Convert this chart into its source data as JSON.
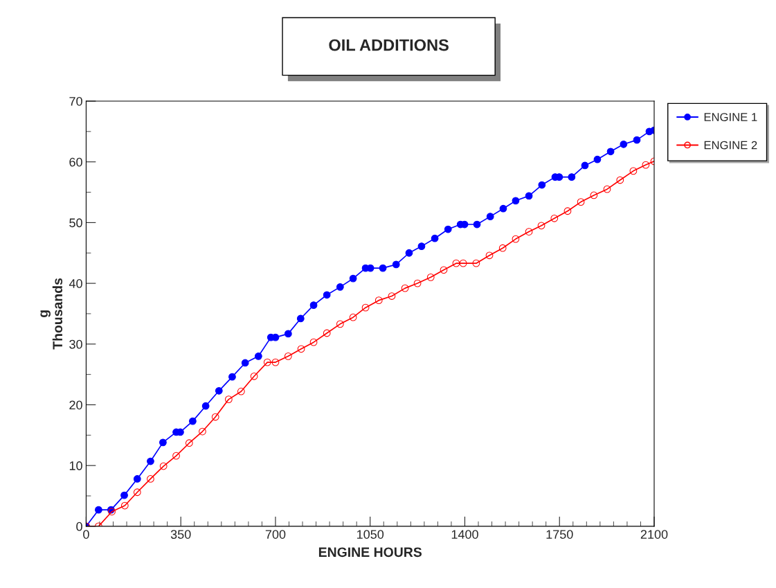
{
  "chart_data": {
    "type": "line",
    "title": "OIL ADDITIONS",
    "xlabel": "ENGINE HOURS",
    "ylabel": "g\nThousands",
    "xlim": [
      0,
      2100
    ],
    "xticks": [
      0,
      350,
      700,
      1050,
      1400,
      1750,
      2100
    ],
    "ylim": [
      0,
      70
    ],
    "yticks": [
      0,
      10,
      20,
      30,
      40,
      50,
      60,
      70
    ],
    "grid": false,
    "legend": "right",
    "marker": "circle",
    "line_style": "solid",
    "series": [
      {
        "name": "ENGINE 1",
        "color": "#0000ff",
        "x": [
          0,
          46,
          92,
          141,
          189,
          238,
          284,
          333,
          348,
          394,
          442,
          491,
          540,
          588,
          637,
          683,
          700,
          747,
          793,
          841,
          890,
          939,
          987,
          1033,
          1051,
          1097,
          1146,
          1194,
          1240,
          1289,
          1338,
          1384,
          1399,
          1445,
          1494,
          1542,
          1588,
          1637,
          1685,
          1734,
          1749,
          1795,
          1844,
          1890,
          1939,
          1987,
          2036,
          2082,
          2100
        ],
        "values": [
          0,
          2.7,
          2.7,
          5.1,
          7.8,
          10.7,
          13.8,
          15.5,
          15.5,
          17.3,
          19.8,
          22.3,
          24.6,
          26.9,
          28.0,
          31.1,
          31.1,
          31.7,
          34.2,
          36.4,
          38.1,
          39.4,
          40.8,
          42.5,
          42.5,
          42.5,
          43.1,
          45.0,
          46.1,
          47.4,
          48.9,
          49.7,
          49.7,
          49.7,
          51.0,
          52.3,
          53.6,
          54.4,
          56.2,
          57.5,
          57.5,
          57.5,
          59.4,
          60.4,
          61.7,
          62.9,
          63.6,
          65.0,
          65.2
        ]
      },
      {
        "name": "ENGINE 2",
        "color": "#ff0000",
        "x": [
          0,
          46,
          95,
          143,
          189,
          238,
          286,
          333,
          381,
          430,
          478,
          527,
          573,
          621,
          670,
          700,
          747,
          795,
          841,
          890,
          939,
          987,
          1033,
          1082,
          1130,
          1179,
          1225,
          1274,
          1322,
          1368,
          1394,
          1442,
          1491,
          1540,
          1588,
          1637,
          1683,
          1731,
          1780,
          1829,
          1877,
          1926,
          1974,
          2023,
          2069,
          2100
        ],
        "values": [
          0,
          0,
          2.4,
          3.4,
          5.6,
          7.8,
          9.9,
          11.6,
          13.7,
          15.6,
          18.0,
          20.9,
          22.2,
          24.7,
          27.0,
          27.0,
          28.0,
          29.2,
          30.3,
          31.8,
          33.3,
          34.4,
          36.0,
          37.2,
          37.9,
          39.2,
          40.0,
          41.0,
          42.2,
          43.3,
          43.3,
          43.3,
          44.6,
          45.8,
          47.3,
          48.5,
          49.5,
          50.7,
          51.9,
          53.4,
          54.5,
          55.5,
          57.0,
          58.5,
          59.5,
          60.1
        ]
      }
    ]
  }
}
